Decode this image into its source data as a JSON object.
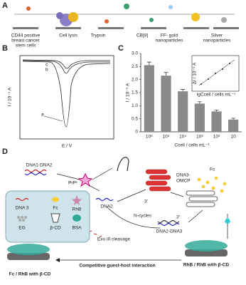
{
  "panel_a": {
    "label": "A",
    "steps": [
      [
        "CD44 positive",
        "breast cancer",
        "stem cells"
      ],
      [
        "Cell lysis"
      ],
      [
        "Trypsin"
      ],
      [
        "CB[8]"
      ],
      [
        "FF- gold",
        "nanoparticles"
      ],
      [
        "Silver",
        "nanoparticles"
      ]
    ]
  },
  "panel_b": {
    "label": "B",
    "y_label": "I / 10⁻⁵ A",
    "x_label": "E / V",
    "curves": [
      "a",
      "b",
      "c"
    ]
  },
  "chart_data": {
    "type": "bar",
    "label": "C",
    "y_label": "I / 10⁻⁵ A",
    "x_label": "Ccell / cells mL⁻¹",
    "categories": [
      "10⁶",
      "10⁵",
      "10⁴",
      "10³",
      "10²",
      "10"
    ],
    "values": [
      2.55,
      2.15,
      1.55,
      1.08,
      0.78,
      0.47
    ],
    "errors": [
      0.12,
      0.12,
      0.07,
      0.07,
      0.05,
      0.05
    ],
    "color": "#8a8a8a",
    "ylim": [
      0,
      3
    ],
    "yticks": [
      0,
      {
        "value": 0.5,
        "label": "0.5"
      },
      {
        "value": 1,
        "label": "1.0"
      },
      {
        "value": 1.5,
        "label": "1.5"
      },
      {
        "value": 2,
        "label": "2.0"
      },
      {
        "value": 2.5,
        "label": "2.5"
      },
      {
        "value": 3,
        "label": "3.0"
      }
    ],
    "inset": {
      "y_label": "ΔI / 10⁻⁵ A",
      "x_label": "lgCcell / cells mL⁻¹"
    }
  },
  "panel_d": {
    "label": "D",
    "dna1_dna2": "DNA1-DNA2",
    "prp": "PrPᶜ",
    "dna2": "DNA2",
    "dna3_omcp": [
      "DNA3-",
      "OMCP"
    ],
    "fc": "Fc",
    "n_cycles": "N-cycles",
    "exo": "Exo III cleavage",
    "dna2_dna3": "DNA2-DNA3",
    "three_prime": [
      "3'",
      "3'"
    ],
    "legend": [
      "DNA 3",
      "Fc",
      "RhB",
      "EG",
      "β-CD",
      "BSA"
    ],
    "competitive": "Competitive guest-host interaction",
    "right_result": "RhB / RhB with β-CD",
    "left_result": "Fc / RhB with β-CD"
  }
}
